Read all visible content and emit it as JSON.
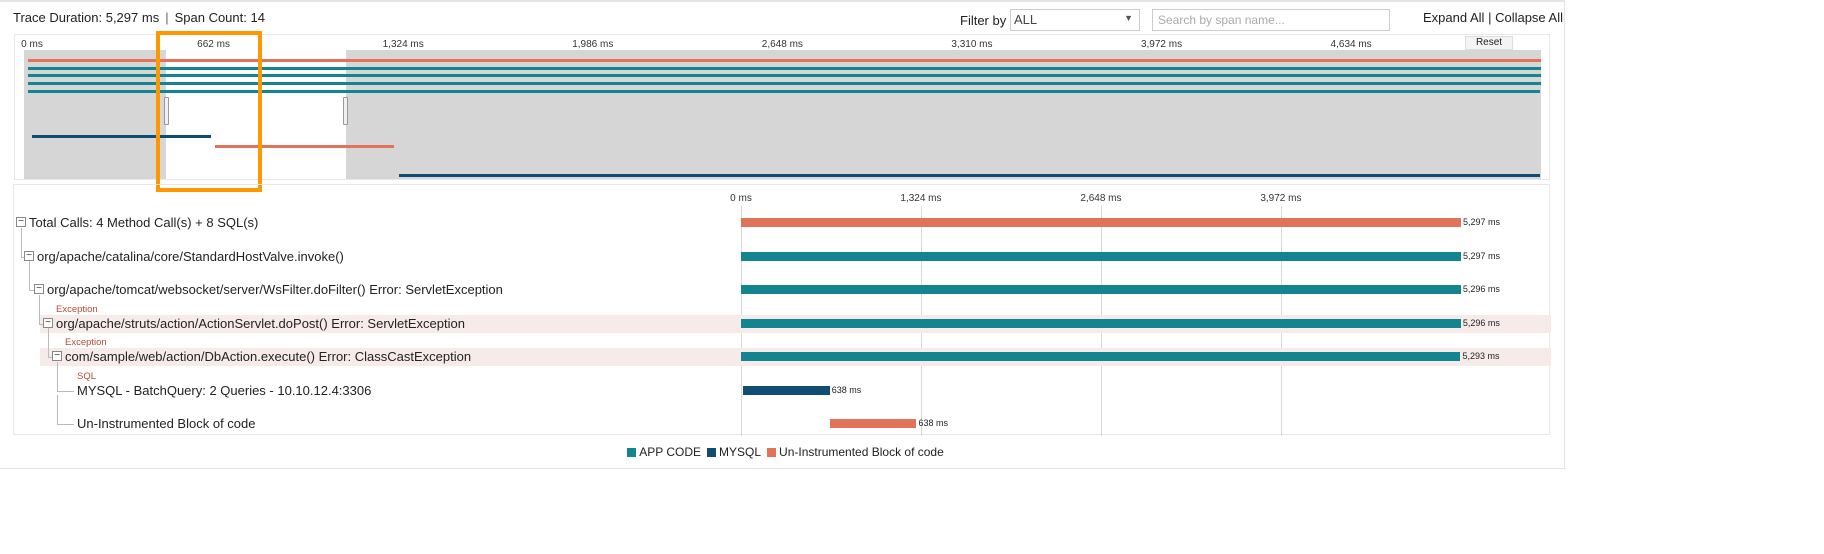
{
  "header": {
    "trace_duration": "Trace Duration: 5,297 ms",
    "span_count": "Span Count: 14",
    "filter_label": "Filter by",
    "filter_value": "ALL",
    "search_placeholder": "Search by span name...",
    "expand_all": "Expand All",
    "collapse_all": "Collapse All",
    "separator": "|"
  },
  "colors": {
    "app": "#138590",
    "mysql": "#0f4d73",
    "uninstrumented": "#e07358",
    "highlight": "#ff9800"
  },
  "total_ms": 5297,
  "overview": {
    "ticks": [
      "0 ms",
      "662 ms",
      "1,324 ms",
      "1,986 ms",
      "2,648 ms",
      "3,310 ms",
      "3,972 ms",
      "4,634 ms"
    ],
    "tick_values": [
      0,
      662,
      1324,
      1986,
      2648,
      3310,
      3972,
      4634
    ],
    "reset_label": "Reset",
    "selection_ms": [
      496,
      1126
    ],
    "spans": [
      {
        "type": "uninstrumented",
        "start": 0,
        "duration": 5297
      },
      {
        "type": "app",
        "start": 0,
        "duration": 5297
      },
      {
        "type": "app",
        "start": 0,
        "duration": 5296
      },
      {
        "type": "app",
        "start": 0,
        "duration": 5296
      },
      {
        "type": "app",
        "start": 0,
        "duration": 5293
      },
      {
        "type": "mysql",
        "start": 15,
        "duration": 638
      },
      {
        "type": "uninstrumented",
        "start": 653,
        "duration": 638
      },
      {
        "type": "mysql",
        "start": 1294,
        "duration": 4000
      }
    ]
  },
  "main": {
    "ticks": [
      "0 ms",
      "1,324 ms",
      "2,648 ms",
      "3,972 ms"
    ],
    "tick_values": [
      0,
      1324,
      2648,
      3972
    ],
    "rows": [
      {
        "label": "Total Calls: 4 Method Call(s) + 8 SQL(s)",
        "tag": "",
        "type": "uninstrumented",
        "start": 0,
        "duration": 5297,
        "dur_label": "5,297 ms",
        "depth": 0,
        "toggle": true,
        "error": false
      },
      {
        "label": "org/apache/catalina/core/StandardHostValve.invoke()",
        "tag": "",
        "type": "app",
        "start": 0,
        "duration": 5297,
        "dur_label": "5,297 ms",
        "depth": 1,
        "toggle": true,
        "error": false
      },
      {
        "label": "org/apache/tomcat/websocket/server/WsFilter.doFilter() Error: ServletException",
        "tag": "",
        "type": "app",
        "start": 0,
        "duration": 5296,
        "dur_label": "5,296 ms",
        "depth": 2,
        "toggle": true,
        "error": false
      },
      {
        "label": "org/apache/struts/action/ActionServlet.doPost() Error: ServletException",
        "tag": "Exception",
        "type": "app",
        "start": 0,
        "duration": 5296,
        "dur_label": "5,296 ms",
        "depth": 3,
        "toggle": true,
        "error": true
      },
      {
        "label": "com/sample/web/action/DbAction.execute() Error: ClassCastException",
        "tag": "Exception",
        "type": "app",
        "start": 0,
        "duration": 5293,
        "dur_label": "5,293 ms",
        "depth": 4,
        "toggle": true,
        "error": true
      },
      {
        "label": "MYSQL - BatchQuery: 2 Queries - 10.10.12.4:3306",
        "tag": "SQL",
        "type": "mysql",
        "start": 15,
        "duration": 638,
        "dur_label": "638 ms",
        "depth": 5,
        "toggle": false,
        "error": false
      },
      {
        "label": "Un-Instrumented Block of code",
        "tag": "",
        "type": "uninstrumented",
        "start": 653,
        "duration": 638,
        "dur_label": "638 ms",
        "depth": 5,
        "toggle": false,
        "error": false
      }
    ]
  },
  "legend": [
    {
      "type": "app",
      "label": "APP CODE"
    },
    {
      "type": "mysql",
      "label": "MYSQL"
    },
    {
      "type": "uninstrumented",
      "label": "Un-Instrumented Block of code"
    }
  ]
}
